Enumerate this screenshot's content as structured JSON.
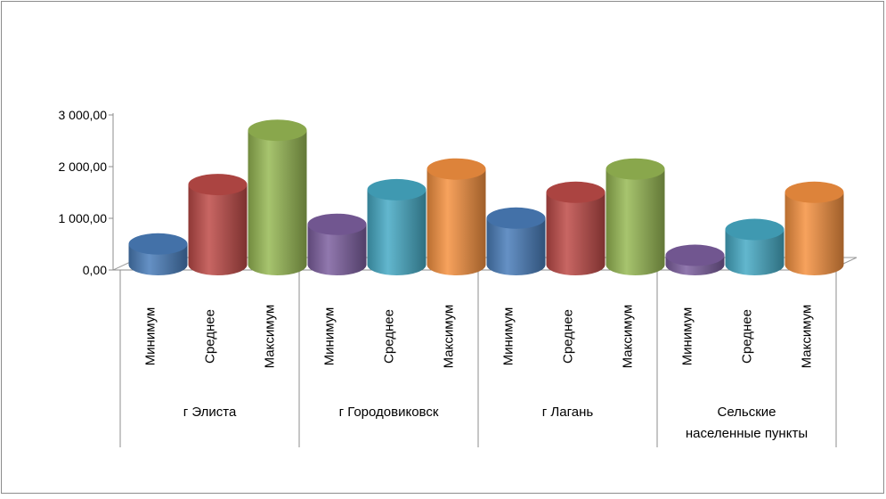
{
  "chart_data": {
    "type": "bar",
    "style": "3d-cylinder",
    "title": "",
    "xlabel": "",
    "ylabel": "",
    "ylim": [
      0,
      3000
    ],
    "y_ticks": [
      0,
      1000,
      2000,
      3000
    ],
    "y_tick_labels": [
      "0,00",
      "1 000,00",
      "2 000,00",
      "3 000,00"
    ],
    "grid": false,
    "legend": "none",
    "groups": [
      {
        "label": "г Элиста",
        "bars": [
          {
            "label": "Минимум",
            "value": 400,
            "color": "#4a7ebb"
          },
          {
            "label": "Среднее",
            "value": 1550,
            "color": "#be4b48"
          },
          {
            "label": "Максимум",
            "value": 2600,
            "color": "#98b954"
          }
        ]
      },
      {
        "label": "г Городовиковск",
        "bars": [
          {
            "label": "Минимум",
            "value": 780,
            "color": "#7d60a0"
          },
          {
            "label": "Среднее",
            "value": 1450,
            "color": "#46aac5"
          },
          {
            "label": "Максимум",
            "value": 1850,
            "color": "#f69240"
          }
        ]
      },
      {
        "label": "г Лагань",
        "bars": [
          {
            "label": "Минимум",
            "value": 900,
            "color": "#4a7ebb"
          },
          {
            "label": "Среднее",
            "value": 1400,
            "color": "#be4b48"
          },
          {
            "label": "Максимум",
            "value": 1850,
            "color": "#98b954"
          }
        ]
      },
      {
        "label": "Сельские населенные пункты",
        "label_lines": [
          "Сельские",
          "населенные пункты"
        ],
        "bars": [
          {
            "label": "Минимум",
            "value": 180,
            "color": "#7d60a0"
          },
          {
            "label": "Среднее",
            "value": 680,
            "color": "#46aac5"
          },
          {
            "label": "Максимум",
            "value": 1400,
            "color": "#f69240"
          }
        ]
      }
    ]
  }
}
